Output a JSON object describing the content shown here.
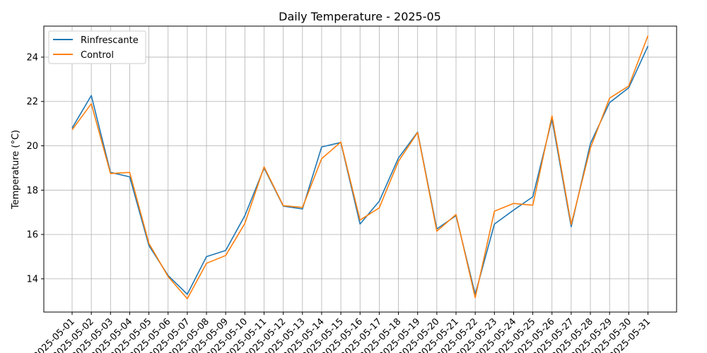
{
  "chart_data": {
    "type": "line",
    "title": "Daily Temperature - 2025-05",
    "xlabel": "",
    "ylabel": "Temperature (°C)",
    "x": [
      "2025-05-01",
      "2025-05-02",
      "2025-05-03",
      "2025-05-04",
      "2025-05-05",
      "2025-05-06",
      "2025-05-07",
      "2025-05-08",
      "2025-05-09",
      "2025-05-10",
      "2025-05-11",
      "2025-05-12",
      "2025-05-13",
      "2025-05-14",
      "2025-05-15",
      "2025-05-16",
      "2025-05-17",
      "2025-05-18",
      "2025-05-19",
      "2025-05-20",
      "2025-05-21",
      "2025-05-22",
      "2025-05-23",
      "2025-05-24",
      "2025-05-25",
      "2025-05-26",
      "2025-05-27",
      "2025-05-28",
      "2025-05-29",
      "2025-05-30",
      "2025-05-31"
    ],
    "yticks": [
      14,
      16,
      18,
      20,
      22,
      24
    ],
    "ylim": [
      12.5,
      25.4
    ],
    "grid": true,
    "legend_position": "top-left",
    "series": [
      {
        "name": "Rinfrescante",
        "color": "#1f77b4",
        "values": [
          20.8,
          22.27,
          18.8,
          18.6,
          15.5,
          14.15,
          13.3,
          15.0,
          15.28,
          16.85,
          19.0,
          17.28,
          17.15,
          19.95,
          20.15,
          16.47,
          17.5,
          19.45,
          20.62,
          16.25,
          16.85,
          13.3,
          16.47,
          17.1,
          17.7,
          21.2,
          16.35,
          20.1,
          21.95,
          22.62,
          24.5
        ]
      },
      {
        "name": "Control",
        "color": "#ff7f0e",
        "values": [
          20.72,
          21.9,
          18.75,
          18.8,
          15.6,
          14.1,
          13.1,
          14.7,
          15.05,
          16.5,
          19.05,
          17.3,
          17.22,
          19.42,
          20.17,
          16.65,
          17.2,
          19.3,
          20.6,
          16.15,
          16.9,
          13.15,
          17.05,
          17.4,
          17.32,
          21.35,
          16.45,
          19.9,
          22.15,
          22.7,
          24.97
        ]
      }
    ]
  }
}
